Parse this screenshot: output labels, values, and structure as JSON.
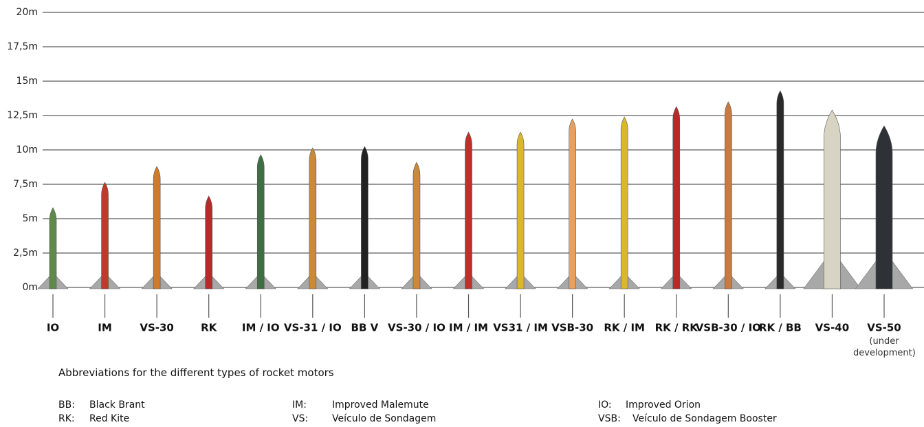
{
  "chart_data": {
    "type": "bar",
    "categories": [
      "IO",
      "IM",
      "VS-30",
      "RK",
      "IM / IO",
      "VS-31 / IO",
      "BB V",
      "VS-30 / IO",
      "IM / IM",
      "VS31 / IM",
      "VSB-30",
      "RK / IM",
      "RK / RK",
      "VSB-30 / IO",
      "RK / BB",
      "VS-40",
      "VS-50"
    ],
    "values": [
      5.8,
      7.65,
      8.8,
      6.65,
      9.65,
      10.15,
      10.25,
      9.1,
      11.3,
      11.3,
      12.25,
      12.4,
      13.15,
      13.5,
      14.3,
      12.9,
      11.75
    ],
    "colors": [
      "#5f8a47",
      "#c0392b",
      "#d07a2a",
      "#b82a2a",
      "#3f6e45",
      "#c98a3a",
      "#222222",
      "#c98a3a",
      "#c0302a",
      "#d9b82a",
      "#e8a060",
      "#d9b82a",
      "#b82a2a",
      "#c87a40",
      "#2a2a2a",
      "#d8d4c4",
      "#2e3236"
    ],
    "ylim": [
      0,
      20
    ],
    "yticks": [
      {
        "value": 0,
        "label": "0m"
      },
      {
        "value": 2.5,
        "label": "2,5m"
      },
      {
        "value": 5,
        "label": "5m"
      },
      {
        "value": 7.5,
        "label": "7,5m"
      },
      {
        "value": 10,
        "label": "10m"
      },
      {
        "value": 12.5,
        "label": "12,5m"
      },
      {
        "value": 15,
        "label": "15m"
      },
      {
        "value": 17.5,
        "label": "17,5m"
      },
      {
        "value": 20,
        "label": "20m"
      }
    ],
    "grid": true,
    "annotation": "(under development)"
  },
  "abbreviations": {
    "title": "Abbreviations for the different types of rocket motors",
    "items": [
      {
        "abbr": "BB:",
        "name": "Black Brant"
      },
      {
        "abbr": "IM:",
        "name": "Improved Malemute"
      },
      {
        "abbr": "IO:",
        "name": "Improved Orion"
      },
      {
        "abbr": "RK:",
        "name": "Red Kite"
      },
      {
        "abbr": "VS:",
        "name": "Veículo de Sondagem"
      },
      {
        "abbr": "VSB:",
        "name": "Veículo de Sondagem Booster"
      }
    ]
  }
}
